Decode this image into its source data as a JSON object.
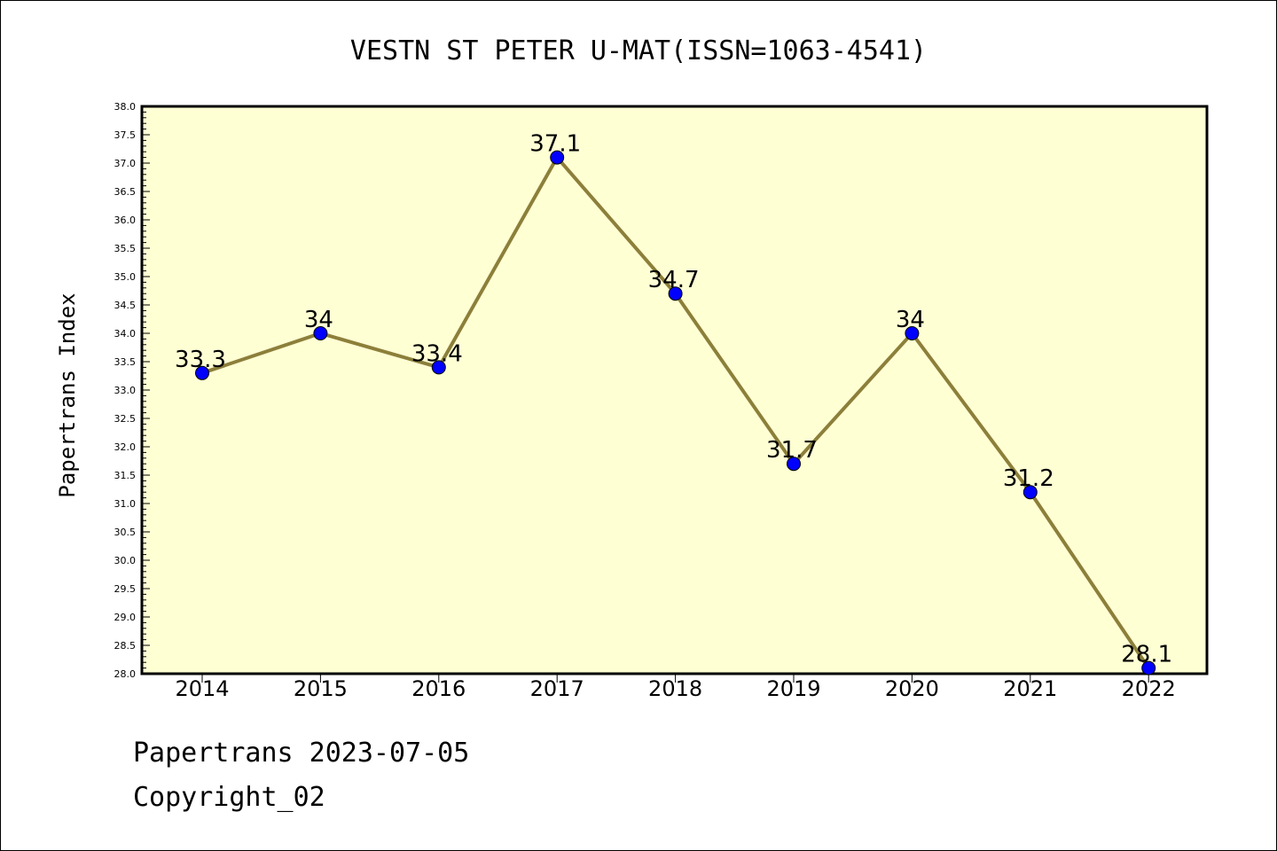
{
  "chart_data": {
    "type": "line",
    "title": "VESTN ST PETER U-MAT(ISSN=1063-4541)",
    "xlabel": "",
    "ylabel": "Papertrans Index",
    "categories": [
      "2014",
      "2015",
      "2016",
      "2017",
      "2018",
      "2019",
      "2020",
      "2021",
      "2022"
    ],
    "series": [
      {
        "values": [
          33.3,
          34,
          33.4,
          37.1,
          34.7,
          31.7,
          34,
          31.2,
          28.1
        ],
        "value_labels": [
          "33.3",
          "34",
          "33.4",
          "37.1",
          "34.7",
          "31.7",
          "34",
          "31.2",
          "28.1"
        ],
        "line_color": "#8c7f3a",
        "marker_color": "#0000ff"
      }
    ],
    "ylim": [
      28.0,
      38.0
    ],
    "yticks": [
      "28.0",
      "28.5",
      "29.0",
      "29.5",
      "30.0",
      "30.5",
      "31.0",
      "31.5",
      "32.0",
      "32.5",
      "33.0",
      "33.5",
      "34.0",
      "34.5",
      "35.0",
      "35.5",
      "36.0",
      "36.5",
      "37.0",
      "37.5",
      "38.0"
    ],
    "plot_background": "#ffffd4",
    "grid": false,
    "legend": "none"
  },
  "footer": {
    "line1": "Papertrans 2023-07-05",
    "line2": "Copyright_02"
  }
}
